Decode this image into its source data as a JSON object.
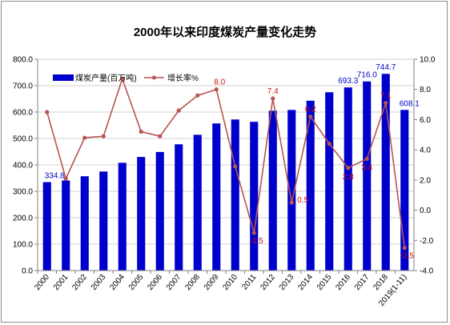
{
  "chart_data": {
    "type": "bar",
    "title": "2000年以来印度煤炭产量变化走势",
    "categories": [
      "2000",
      "2001",
      "2002",
      "2003",
      "2004",
      "2005",
      "2006",
      "2007",
      "2008",
      "2009",
      "2010",
      "2011",
      "2012",
      "2013",
      "2014",
      "2015",
      "2016",
      "2017",
      "2018",
      "2019(1-11)"
    ],
    "series": [
      {
        "name": "煤炭产量(百万吨)",
        "type": "bar",
        "axis": "left",
        "color": "#0000cc",
        "values": [
          334.8,
          341,
          357,
          375,
          408,
          430,
          449,
          478,
          514,
          557,
          572,
          563,
          605,
          608,
          643,
          675,
          693.3,
          716.0,
          744.7,
          608.1
        ]
      },
      {
        "name": "增长率%",
        "type": "line",
        "axis": "right",
        "color": "#b85450",
        "values": [
          6.5,
          2.1,
          4.8,
          4.9,
          8.7,
          5.2,
          4.9,
          6.6,
          7.6,
          8.0,
          2.9,
          -1.5,
          7.4,
          0.5,
          6.2,
          4.4,
          2.8,
          3.4,
          7.1,
          -2.5
        ]
      }
    ],
    "bar_labels": [
      {
        "index": 0,
        "text": "334.8"
      },
      {
        "index": 16,
        "text": "693.3"
      },
      {
        "index": 17,
        "text": "716.0"
      },
      {
        "index": 18,
        "text": "744.7"
      },
      {
        "index": 19,
        "text": "608.1"
      }
    ],
    "line_labels": [
      {
        "index": 9,
        "text": "8.0"
      },
      {
        "index": 11,
        "text": "-1.5"
      },
      {
        "index": 12,
        "text": "7.4"
      },
      {
        "index": 13,
        "text": "0.5"
      },
      {
        "index": 14,
        "text": "6.2"
      },
      {
        "index": 16,
        "text": "2.8"
      },
      {
        "index": 17,
        "text": "3.4"
      },
      {
        "index": 18,
        "text": "7.1"
      },
      {
        "index": 19,
        "text": "-2.5"
      }
    ],
    "y_left": {
      "min": 0,
      "max": 800,
      "step": 100,
      "tick_labels": [
        "0.0",
        "100.0",
        "200.0",
        "300.0",
        "400.0",
        "500.0",
        "600.0",
        "700.0",
        "800.0"
      ]
    },
    "y_right": {
      "min": -4,
      "max": 10,
      "step": 2,
      "tick_labels": [
        "-4.0",
        "-2.0",
        "0.0",
        "2.0",
        "4.0",
        "6.0",
        "8.0",
        "10.0"
      ]
    },
    "grid": "horizontal",
    "legend": "top-left",
    "xlabel": "",
    "ylabel": ""
  }
}
